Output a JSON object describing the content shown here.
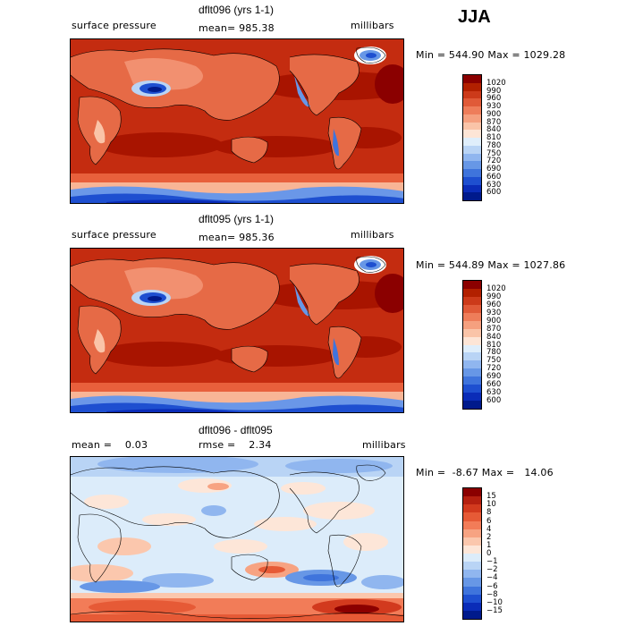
{
  "season": "JJA",
  "panels": [
    {
      "title": "dflt096 (yrs 1-1)",
      "left_label": "surface pressure",
      "mid_label": "mean= 985.38",
      "right_label": "millibars",
      "minmax": "Min = 544.90 Max = 1029.28",
      "colorbar": {
        "labels": [
          "1020",
          "990",
          "960",
          "930",
          "900",
          "870",
          "840",
          "810",
          "780",
          "750",
          "720",
          "690",
          "660",
          "630",
          "600"
        ],
        "colors": [
          "#8b0000",
          "#b22000",
          "#cc3a1a",
          "#e05a38",
          "#ee7d5a",
          "#f5a07f",
          "#fac4a8",
          "#fde5d6",
          "#dfeefb",
          "#b9d4f5",
          "#90b6ef",
          "#6797e6",
          "#3f74dc",
          "#1e4fd0",
          "#0a2cb8",
          "#001a8c"
        ]
      }
    },
    {
      "title": "dflt095 (yrs 1-1)",
      "left_label": "surface pressure",
      "mid_label": "mean= 985.36",
      "right_label": "millibars",
      "minmax": "Min = 544.89 Max = 1027.86",
      "colorbar": {
        "labels": [
          "1020",
          "990",
          "960",
          "930",
          "900",
          "870",
          "840",
          "810",
          "780",
          "750",
          "720",
          "690",
          "660",
          "630",
          "600"
        ],
        "colors": [
          "#8b0000",
          "#b22000",
          "#cc3a1a",
          "#e05a38",
          "#ee7d5a",
          "#f5a07f",
          "#fac4a8",
          "#fde5d6",
          "#dfeefb",
          "#b9d4f5",
          "#90b6ef",
          "#6797e6",
          "#3f74dc",
          "#1e4fd0",
          "#0a2cb8",
          "#001a8c"
        ]
      }
    },
    {
      "title": "dflt096 - dflt095",
      "left_label": "mean =    0.03",
      "mid_label": "rmse =    2.34",
      "right_label": "millibars",
      "minmax": "Min =  -8.67 Max =   14.06",
      "colorbar": {
        "labels": [
          "15",
          "10",
          "8",
          "6",
          "4",
          "2",
          "1",
          "0",
          "−1",
          "−2",
          "−4",
          "−6",
          "−8",
          "−10",
          "−15"
        ],
        "colors": [
          "#8b0000",
          "#b52010",
          "#d23a1e",
          "#e65a36",
          "#f27c58",
          "#f7a382",
          "#fbc7ad",
          "#fde6d8",
          "#dcecfa",
          "#b9d4f5",
          "#90b6ef",
          "#6797e6",
          "#3f74dc",
          "#1e4fd0",
          "#0a2cb8",
          "#001a8c"
        ]
      }
    }
  ]
}
